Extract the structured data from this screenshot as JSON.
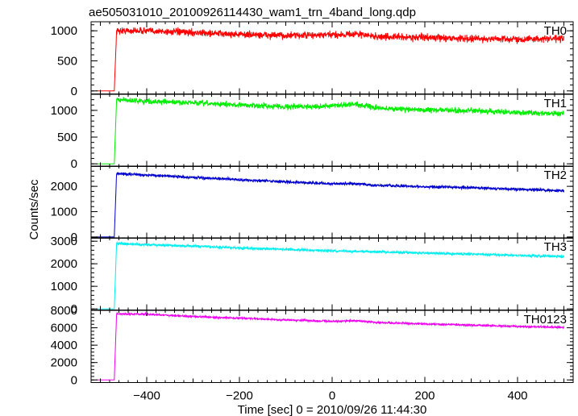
{
  "chart_data": {
    "type": "line",
    "title": "ae505031010_20100926114430_wam1_trn_4band_long.qdp",
    "xlabel": "Time [sec] 0 = 2010/09/26 11:44:30",
    "ylabel": "Counts/sec",
    "xlim": [
      -520,
      520
    ],
    "x_ticks": [
      -400,
      -200,
      0,
      200,
      400
    ],
    "x_tick_labels": [
      "−400",
      "−200",
      "0",
      "200",
      "400"
    ],
    "grid": false,
    "legend": "none",
    "panels": [
      {
        "name": "TH0",
        "color": "#ff0000",
        "ylim": [
          -50,
          1150
        ],
        "y_ticks": [
          0,
          500,
          1000
        ],
        "y_tick_labels": [
          "0",
          "500",
          "1000"
        ],
        "rise_time": -470,
        "pre_level": 0,
        "points": [
          [
            -510,
            0
          ],
          [
            -470,
            0
          ],
          [
            -465,
            1000
          ],
          [
            -400,
            1000
          ],
          [
            -300,
            970
          ],
          [
            -200,
            940
          ],
          [
            -100,
            920
          ],
          [
            0,
            930
          ],
          [
            50,
            950
          ],
          [
            100,
            900
          ],
          [
            200,
            890
          ],
          [
            300,
            870
          ],
          [
            400,
            860
          ],
          [
            500,
            870
          ]
        ],
        "noise": 40
      },
      {
        "name": "TH1",
        "color": "#00ee00",
        "ylim": [
          -50,
          1300
        ],
        "y_ticks": [
          0,
          500,
          1000
        ],
        "y_tick_labels": [
          "0",
          "500",
          "1000"
        ],
        "rise_time": -470,
        "pre_level": 0,
        "points": [
          [
            -510,
            0
          ],
          [
            -470,
            0
          ],
          [
            -465,
            1200
          ],
          [
            -400,
            1170
          ],
          [
            -300,
            1140
          ],
          [
            -200,
            1100
          ],
          [
            -100,
            1070
          ],
          [
            0,
            1080
          ],
          [
            50,
            1120
          ],
          [
            100,
            1040
          ],
          [
            200,
            1010
          ],
          [
            300,
            990
          ],
          [
            400,
            960
          ],
          [
            500,
            940
          ]
        ],
        "noise": 35
      },
      {
        "name": "TH2",
        "color": "#0000cc",
        "ylim": [
          -50,
          2800
        ],
        "y_ticks": [
          0,
          1000,
          2000
        ],
        "y_tick_labels": [
          "0",
          "1000",
          "2000"
        ],
        "rise_time": -470,
        "pre_level": 0,
        "points": [
          [
            -510,
            0
          ],
          [
            -470,
            0
          ],
          [
            -465,
            2500
          ],
          [
            -400,
            2450
          ],
          [
            -300,
            2350
          ],
          [
            -200,
            2260
          ],
          [
            -100,
            2180
          ],
          [
            0,
            2100
          ],
          [
            50,
            2110
          ],
          [
            100,
            2030
          ],
          [
            200,
            1990
          ],
          [
            300,
            1950
          ],
          [
            400,
            1880
          ],
          [
            500,
            1830
          ]
        ],
        "noise": 40
      },
      {
        "name": "TH3",
        "color": "#00eeee",
        "ylim": [
          -50,
          3150
        ],
        "y_ticks": [
          0,
          1000,
          2000,
          3000
        ],
        "y_tick_labels": [
          "0",
          "1000",
          "2000",
          "3000"
        ],
        "rise_time": -470,
        "pre_level": 0,
        "points": [
          [
            -510,
            0
          ],
          [
            -470,
            0
          ],
          [
            -465,
            2900
          ],
          [
            -400,
            2850
          ],
          [
            -300,
            2780
          ],
          [
            -200,
            2700
          ],
          [
            -100,
            2640
          ],
          [
            0,
            2570
          ],
          [
            100,
            2530
          ],
          [
            200,
            2480
          ],
          [
            300,
            2430
          ],
          [
            400,
            2370
          ],
          [
            500,
            2320
          ]
        ],
        "noise": 40
      },
      {
        "name": "TH0123",
        "color": "#ee00ee",
        "ylim": [
          -300,
          8000
        ],
        "y_ticks": [
          0,
          2000,
          4000,
          6000,
          8000
        ],
        "y_tick_labels": [
          "0",
          "2000",
          "4000",
          "6000",
          "8000"
        ],
        "rise_time": -470,
        "pre_level": 0,
        "points": [
          [
            -510,
            0
          ],
          [
            -470,
            0
          ],
          [
            -465,
            7600
          ],
          [
            -400,
            7550
          ],
          [
            -300,
            7300
          ],
          [
            -200,
            7100
          ],
          [
            -100,
            6900
          ],
          [
            0,
            6750
          ],
          [
            50,
            6800
          ],
          [
            100,
            6600
          ],
          [
            200,
            6450
          ],
          [
            300,
            6300
          ],
          [
            400,
            6150
          ],
          [
            500,
            6050
          ]
        ],
        "noise": 80
      }
    ]
  }
}
